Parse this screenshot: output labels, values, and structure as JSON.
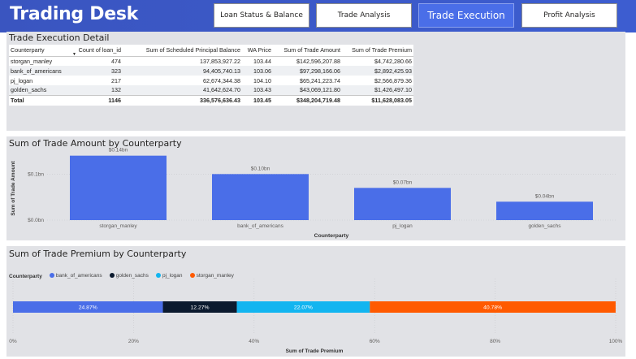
{
  "header": {
    "title": "Trading Desk",
    "nav": [
      {
        "label": "Loan Status & Balance",
        "active": false
      },
      {
        "label": "Trade Analysis",
        "active": false
      },
      {
        "label": "Trade Execution",
        "active": true
      },
      {
        "label": "Profit Analysis",
        "active": false
      }
    ]
  },
  "table": {
    "title": "Trade Execution Detail",
    "columns": [
      "Counterparty",
      "Count of loan_id",
      "Sum of Scheduled Principal Balance",
      "WA Price",
      "Sum of Trade Amount",
      "Sum of Trade Premium"
    ],
    "rows": [
      [
        "storgan_manley",
        "474",
        "137,853,927.22",
        "103.44",
        "$142,596,207.88",
        "$4,742,280.66"
      ],
      [
        "bank_of_americans",
        "323",
        "94,405,740.13",
        "103.06",
        "$97,298,166.06",
        "$2,892,425.93"
      ],
      [
        "pj_logan",
        "217",
        "62,674,344.38",
        "104.10",
        "$65,241,223.74",
        "$2,566,879.36"
      ],
      [
        "golden_sachs",
        "132",
        "41,642,624.70",
        "103.43",
        "$43,069,121.80",
        "$1,426,497.10"
      ]
    ],
    "total": [
      "Total",
      "1146",
      "336,576,636.43",
      "103.45",
      "$348,204,719.48",
      "$11,628,083.05"
    ]
  },
  "chart_data": [
    {
      "type": "bar",
      "title": "Sum of Trade Amount by Counterparty",
      "xlabel": "Counterparty",
      "ylabel": "Sum of Trade Amount",
      "categories": [
        "storgan_manley",
        "bank_of_americans",
        "pj_logan",
        "golden_sachs"
      ],
      "values": [
        0.14,
        0.1,
        0.07,
        0.04
      ],
      "data_labels": [
        "$0.14bn",
        "$0.10bn",
        "$0.07bn",
        "$0.04bn"
      ],
      "yticks": [
        {
          "value": 0.0,
          "label": "$0.0bn"
        },
        {
          "value": 0.1,
          "label": "$0.1bn"
        }
      ],
      "ylim": [
        0,
        0.15
      ],
      "color": "#4a6ee8"
    },
    {
      "type": "bar",
      "orientation": "horizontal-stacked-100",
      "title": "Sum of Trade Premium by Counterparty",
      "xlabel": "Sum of Trade Premium",
      "legend_title": "Counterparty",
      "series": [
        {
          "name": "bank_of_americans",
          "value": 24.87,
          "label": "24.87%",
          "color": "#4a6ee8"
        },
        {
          "name": "golden_sachs",
          "value": 12.27,
          "label": "12.27%",
          "color": "#0b1a2e"
        },
        {
          "name": "pj_logan",
          "value": 22.07,
          "label": "22.07%",
          "color": "#12b5f0"
        },
        {
          "name": "storgan_manley",
          "value": 40.78,
          "label": "40.78%",
          "color": "#ff5a00"
        }
      ],
      "xticks": [
        {
          "value": 0,
          "label": "0%"
        },
        {
          "value": 20,
          "label": "20%"
        },
        {
          "value": 40,
          "label": "40%"
        },
        {
          "value": 60,
          "label": "60%"
        },
        {
          "value": 80,
          "label": "80%"
        },
        {
          "value": 100,
          "label": "100%"
        }
      ],
      "xlim": [
        0,
        100
      ]
    }
  ]
}
